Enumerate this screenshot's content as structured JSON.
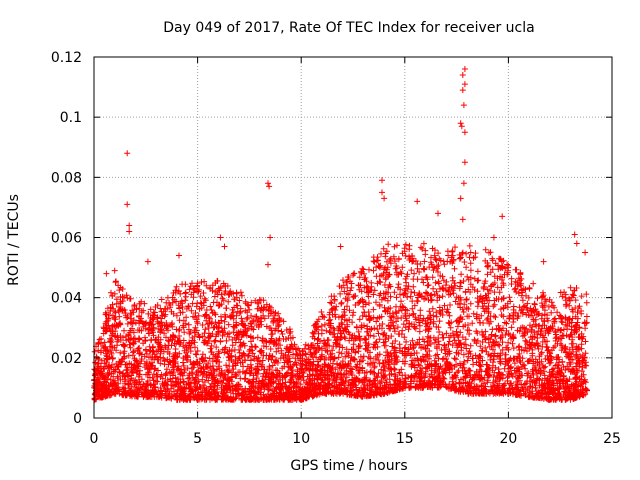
{
  "chart_data": {
    "type": "scatter",
    "title": "Day 049 of 2017, Rate Of TEC Index for receiver ucla",
    "xlabel": "GPS time / hours",
    "ylabel": "ROTI / TECUs",
    "xlim": [
      0,
      25
    ],
    "ylim": [
      0,
      0.12
    ],
    "x_ticks": [
      0,
      5,
      10,
      15,
      20,
      25
    ],
    "x_tick_labels": [
      "0",
      "5",
      "10",
      "15",
      "20",
      "25"
    ],
    "y_ticks": [
      0,
      0.02,
      0.04,
      0.06,
      0.08,
      0.1,
      0.12
    ],
    "y_tick_labels": [
      "0",
      "0.02",
      "0.04",
      "0.06",
      "0.08",
      "0.1",
      "0.12"
    ],
    "grid": true,
    "marker": "+",
    "marker_color": "#ff0000",
    "data_range_hours": [
      0,
      23.8
    ],
    "approx_profile": [
      {
        "x": 0.0,
        "ymin": 0.006,
        "ymax": 0.022
      },
      {
        "x": 1.0,
        "ymin": 0.008,
        "ymax": 0.046
      },
      {
        "x": 2.0,
        "ymin": 0.007,
        "ymax": 0.04
      },
      {
        "x": 3.0,
        "ymin": 0.007,
        "ymax": 0.038
      },
      {
        "x": 4.0,
        "ymin": 0.006,
        "ymax": 0.044
      },
      {
        "x": 5.0,
        "ymin": 0.006,
        "ymax": 0.046
      },
      {
        "x": 6.0,
        "ymin": 0.006,
        "ymax": 0.046
      },
      {
        "x": 7.0,
        "ymin": 0.006,
        "ymax": 0.042
      },
      {
        "x": 8.0,
        "ymin": 0.006,
        "ymax": 0.04
      },
      {
        "x": 9.0,
        "ymin": 0.006,
        "ymax": 0.036
      },
      {
        "x": 10.0,
        "ymin": 0.006,
        "ymax": 0.022
      },
      {
        "x": 11.0,
        "ymin": 0.008,
        "ymax": 0.036
      },
      {
        "x": 12.0,
        "ymin": 0.008,
        "ymax": 0.046
      },
      {
        "x": 13.0,
        "ymin": 0.007,
        "ymax": 0.05
      },
      {
        "x": 14.0,
        "ymin": 0.008,
        "ymax": 0.058
      },
      {
        "x": 15.0,
        "ymin": 0.01,
        "ymax": 0.058
      },
      {
        "x": 16.0,
        "ymin": 0.01,
        "ymax": 0.058
      },
      {
        "x": 17.0,
        "ymin": 0.01,
        "ymax": 0.056
      },
      {
        "x": 18.0,
        "ymin": 0.008,
        "ymax": 0.058
      },
      {
        "x": 19.0,
        "ymin": 0.008,
        "ymax": 0.056
      },
      {
        "x": 20.0,
        "ymin": 0.008,
        "ymax": 0.052
      },
      {
        "x": 21.0,
        "ymin": 0.007,
        "ymax": 0.046
      },
      {
        "x": 22.0,
        "ymin": 0.006,
        "ymax": 0.04
      },
      {
        "x": 23.0,
        "ymin": 0.006,
        "ymax": 0.044
      },
      {
        "x": 23.8,
        "ymin": 0.008,
        "ymax": 0.042
      }
    ],
    "notable_points": [
      {
        "x": 1.6,
        "y": 0.088
      },
      {
        "x": 1.6,
        "y": 0.071
      },
      {
        "x": 1.7,
        "y": 0.064
      },
      {
        "x": 1.7,
        "y": 0.062
      },
      {
        "x": 1.0,
        "y": 0.049
      },
      {
        "x": 0.6,
        "y": 0.048
      },
      {
        "x": 2.6,
        "y": 0.052
      },
      {
        "x": 4.1,
        "y": 0.054
      },
      {
        "x": 6.1,
        "y": 0.06
      },
      {
        "x": 6.3,
        "y": 0.057
      },
      {
        "x": 8.4,
        "y": 0.078
      },
      {
        "x": 8.45,
        "y": 0.077
      },
      {
        "x": 8.5,
        "y": 0.06
      },
      {
        "x": 8.4,
        "y": 0.051
      },
      {
        "x": 11.9,
        "y": 0.057
      },
      {
        "x": 13.9,
        "y": 0.079
      },
      {
        "x": 13.9,
        "y": 0.075
      },
      {
        "x": 14.0,
        "y": 0.073
      },
      {
        "x": 15.6,
        "y": 0.072
      },
      {
        "x": 16.6,
        "y": 0.068
      },
      {
        "x": 17.7,
        "y": 0.098
      },
      {
        "x": 17.75,
        "y": 0.097
      },
      {
        "x": 17.8,
        "y": 0.109
      },
      {
        "x": 17.8,
        "y": 0.114
      },
      {
        "x": 17.9,
        "y": 0.116
      },
      {
        "x": 17.9,
        "y": 0.111
      },
      {
        "x": 17.85,
        "y": 0.104
      },
      {
        "x": 17.9,
        "y": 0.095
      },
      {
        "x": 17.9,
        "y": 0.085
      },
      {
        "x": 17.85,
        "y": 0.078
      },
      {
        "x": 17.7,
        "y": 0.073
      },
      {
        "x": 17.8,
        "y": 0.066
      },
      {
        "x": 19.7,
        "y": 0.067
      },
      {
        "x": 19.3,
        "y": 0.06
      },
      {
        "x": 21.7,
        "y": 0.052
      },
      {
        "x": 23.2,
        "y": 0.061
      },
      {
        "x": 23.3,
        "y": 0.058
      },
      {
        "x": 23.7,
        "y": 0.055
      }
    ]
  }
}
